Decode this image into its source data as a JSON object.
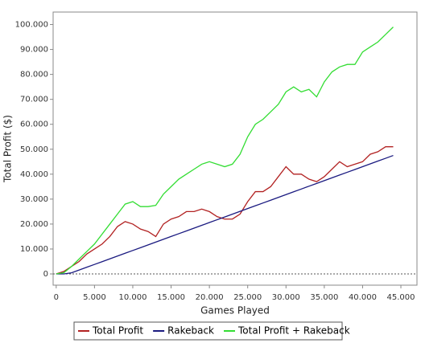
{
  "chart_data": {
    "type": "line",
    "x_label": "Games Played",
    "y_label": "Total Profit ($)",
    "x": [
      0,
      1000,
      2000,
      3000,
      4000,
      5000,
      6000,
      7000,
      8000,
      9000,
      10000,
      11000,
      12000,
      13000,
      14000,
      15000,
      16000,
      17000,
      18000,
      19000,
      20000,
      21000,
      22000,
      23000,
      24000,
      25000,
      26000,
      27000,
      28000,
      29000,
      30000,
      31000,
      32000,
      33000,
      34000,
      35000,
      36000,
      37000,
      38000,
      39000,
      40000,
      41000,
      42000,
      43000,
      44000
    ],
    "series": [
      {
        "name": "Total Profit",
        "color": "#b22222",
        "values": [
          0,
          1000,
          3000,
          5000,
          8000,
          10000,
          12000,
          15000,
          19000,
          21000,
          20000,
          18000,
          17000,
          15000,
          20000,
          22000,
          23000,
          25000,
          25000,
          26000,
          25000,
          23000,
          22000,
          22000,
          24000,
          29000,
          33000,
          33000,
          35000,
          39000,
          43000,
          40000,
          40000,
          38000,
          37000,
          39000,
          42000,
          45000,
          43000,
          44000,
          45000,
          48000,
          49000,
          51000,
          51000
        ]
      },
      {
        "name": "Rakeback",
        "color": "#1a1a80",
        "values": [
          0,
          0,
          450,
          1570,
          2690,
          3810,
          4930,
          6050,
          7170,
          8290,
          9410,
          10530,
          11650,
          12770,
          13890,
          15010,
          16130,
          17250,
          18370,
          19490,
          20610,
          21730,
          22850,
          23970,
          25090,
          26210,
          27330,
          28450,
          29570,
          30690,
          31810,
          32930,
          34050,
          35170,
          36290,
          37410,
          38530,
          39650,
          40770,
          41890,
          43010,
          44130,
          45250,
          46370,
          47490
        ]
      },
      {
        "name": "Total Profit + Rakeback",
        "color": "#33dd33",
        "values": [
          0,
          500,
          3000,
          6000,
          9000,
          12000,
          16000,
          20000,
          24000,
          28000,
          29000,
          27000,
          27000,
          27500,
          32000,
          35000,
          38000,
          40000,
          42000,
          44000,
          45000,
          44000,
          43000,
          44000,
          48000,
          55000,
          60000,
          62000,
          65000,
          68000,
          73000,
          75000,
          73000,
          74000,
          71000,
          77000,
          81000,
          83000,
          84000,
          84000,
          89000,
          91000,
          93000,
          96000,
          99000
        ]
      }
    ],
    "xlim": [
      -400,
      47100
    ],
    "ylim": [
      -4500,
      105000
    ],
    "xticks": [
      0,
      {
        "value": 5000,
        "label": "5.000"
      },
      {
        "value": 10000,
        "label": "10.000"
      },
      {
        "value": 15000,
        "label": "15.000"
      },
      {
        "value": 20000,
        "label": "20.000"
      },
      {
        "value": 25000,
        "label": "25.000"
      },
      {
        "value": 30000,
        "label": "30.000"
      },
      {
        "value": 35000,
        "label": "35.000"
      },
      {
        "value": 40000,
        "label": "40.000"
      },
      {
        "value": 45000,
        "label": "45.000"
      }
    ],
    "yticks": [
      0,
      {
        "value": 10000,
        "label": "10.000"
      },
      {
        "value": 20000,
        "label": "20.000"
      },
      {
        "value": 30000,
        "label": "30.000"
      },
      {
        "value": 40000,
        "label": "40.000"
      },
      {
        "value": 50000,
        "label": "50.000"
      },
      {
        "value": 60000,
        "label": "60.000"
      },
      {
        "value": 70000,
        "label": "70.000"
      },
      {
        "value": 80000,
        "label": "80.000"
      },
      {
        "value": 90000,
        "label": "90.000"
      },
      {
        "value": 100000,
        "label": "100.000"
      }
    ],
    "legend": "bottom"
  }
}
